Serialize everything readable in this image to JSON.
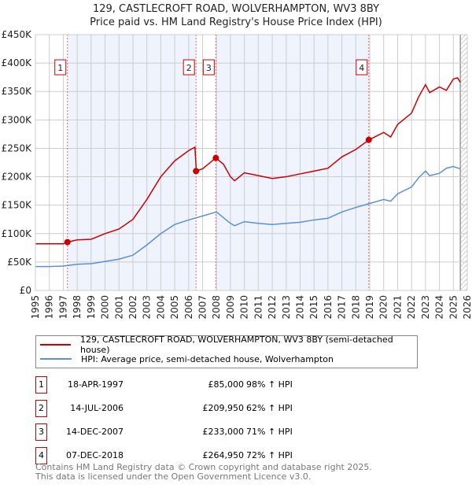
{
  "chart_data": {
    "type": "line",
    "title": "129, CASTLECROFT ROAD, WOLVERHAMPTON, WV3 8BY",
    "subtitle": "Price paid vs. HM Land Registry's House Price Index (HPI)",
    "ylim": [
      0,
      450000
    ],
    "xlim": [
      1995,
      2026
    ],
    "y_ticks": [
      {
        "v": 0,
        "label": "£0"
      },
      {
        "v": 50000,
        "label": "£50K"
      },
      {
        "v": 100000,
        "label": "£100K"
      },
      {
        "v": 150000,
        "label": "£150K"
      },
      {
        "v": 200000,
        "label": "£200K"
      },
      {
        "v": 250000,
        "label": "£250K"
      },
      {
        "v": 300000,
        "label": "£300K"
      },
      {
        "v": 350000,
        "label": "£350K"
      },
      {
        "v": 400000,
        "label": "£400K"
      },
      {
        "v": 450000,
        "label": "£450K"
      }
    ],
    "x_ticks": [
      "1995",
      "1996",
      "1997",
      "1998",
      "1999",
      "2000",
      "2001",
      "2002",
      "2003",
      "2004",
      "2005",
      "2006",
      "2007",
      "2008",
      "2009",
      "2010",
      "2011",
      "2012",
      "2013",
      "2014",
      "2015",
      "2016",
      "2017",
      "2018",
      "2019",
      "2020",
      "2021",
      "2022",
      "2023",
      "2024",
      "2025",
      "2026"
    ],
    "series": [
      {
        "name": "129, CASTLECROFT ROAD, WOLVERHAMPTON, WV3 8BY (semi-detached house)",
        "color": "#cc0000",
        "x": [
          1995,
          1996,
          1997,
          1997.3,
          1998,
          1999,
          2000,
          2001,
          2002,
          2003,
          2004,
          2005,
          2006,
          2006.45,
          2006.55,
          2007,
          2007.95,
          2008.5,
          2009,
          2009.3,
          2010,
          2011,
          2012,
          2013,
          2014,
          2015,
          2016,
          2017,
          2018,
          2018.95,
          2020,
          2020.5,
          2021,
          2022,
          2022.5,
          2023,
          2023.3,
          2024,
          2024.5,
          2025,
          2025.3,
          2025.5
        ],
        "y": [
          82000,
          82000,
          82000,
          85000,
          89000,
          90000,
          100000,
          108000,
          125000,
          160000,
          200000,
          228000,
          246000,
          252000,
          210000,
          214000,
          233000,
          222000,
          200000,
          193000,
          207000,
          202000,
          197000,
          200000,
          205000,
          210000,
          215000,
          235000,
          248000,
          264950,
          278000,
          270000,
          292000,
          312000,
          340000,
          362000,
          348000,
          358000,
          352000,
          372000,
          374000,
          366000
        ]
      },
      {
        "name": "HPI: Average price, semi-detached house, Wolverhampton",
        "color": "#5b8fd6",
        "x": [
          1995,
          1996,
          1997,
          1998,
          1999,
          2000,
          2001,
          2002,
          2003,
          2004,
          2005,
          2006,
          2007,
          2008,
          2009,
          2009.3,
          2010,
          2011,
          2012,
          2013,
          2014,
          2015,
          2016,
          2017,
          2018,
          2019,
          2020,
          2020.5,
          2021,
          2022,
          2022.5,
          2023,
          2023.3,
          2024,
          2024.5,
          2025,
          2025.5
        ],
        "y": [
          42000,
          42000,
          43000,
          46000,
          47000,
          51000,
          55000,
          62000,
          80000,
          100000,
          116000,
          124000,
          131000,
          138000,
          118000,
          114000,
          121000,
          118000,
          116000,
          118000,
          120000,
          124000,
          127000,
          138000,
          146000,
          153000,
          160000,
          157000,
          170000,
          182000,
          198000,
          210000,
          202000,
          206000,
          215000,
          218000,
          214000
        ]
      }
    ],
    "sales": [
      {
        "n": "1",
        "x": 1997.3,
        "date": "18-APR-1997",
        "price": "£85,000",
        "value": 85000,
        "hpi": "98% ↑ HPI"
      },
      {
        "n": "2",
        "x": 2006.53,
        "date": "14-JUL-2006",
        "price": "£209,950",
        "value": 209950,
        "hpi": "62% ↑ HPI"
      },
      {
        "n": "3",
        "x": 2007.95,
        "date": "14-DEC-2007",
        "price": "£233,000",
        "value": 233000,
        "hpi": "71% ↑ HPI"
      },
      {
        "n": "4",
        "x": 2018.93,
        "date": "07-DEC-2018",
        "price": "£264,950",
        "value": 264950,
        "hpi": "72% ↑ HPI"
      }
    ],
    "shaded": [
      [
        1997.3,
        2006.53
      ],
      [
        2007.95,
        2018.93
      ]
    ],
    "hatch_from": 2025.5
  },
  "footer": [
    "Contains HM Land Registry data © Crown copyright and database right 2025.",
    "This data is licensed under the Open Government Licence v3.0."
  ]
}
